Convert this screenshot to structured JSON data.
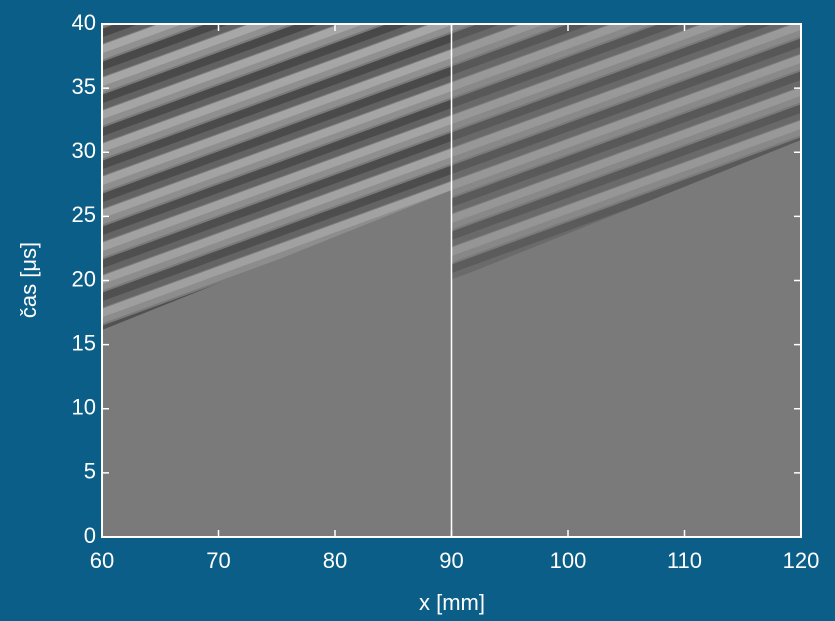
{
  "chart_data": {
    "type": "image",
    "xlabel": "x [mm]",
    "ylabel": "čas [μs]",
    "xlim": [
      60,
      120
    ],
    "xticks": [
      60,
      70,
      80,
      90,
      100,
      110,
      120
    ],
    "ylim": [
      0,
      40
    ],
    "yticks": [
      0,
      5,
      10,
      15,
      20,
      25,
      30,
      35,
      40
    ],
    "vertical_line": 90
  }
}
